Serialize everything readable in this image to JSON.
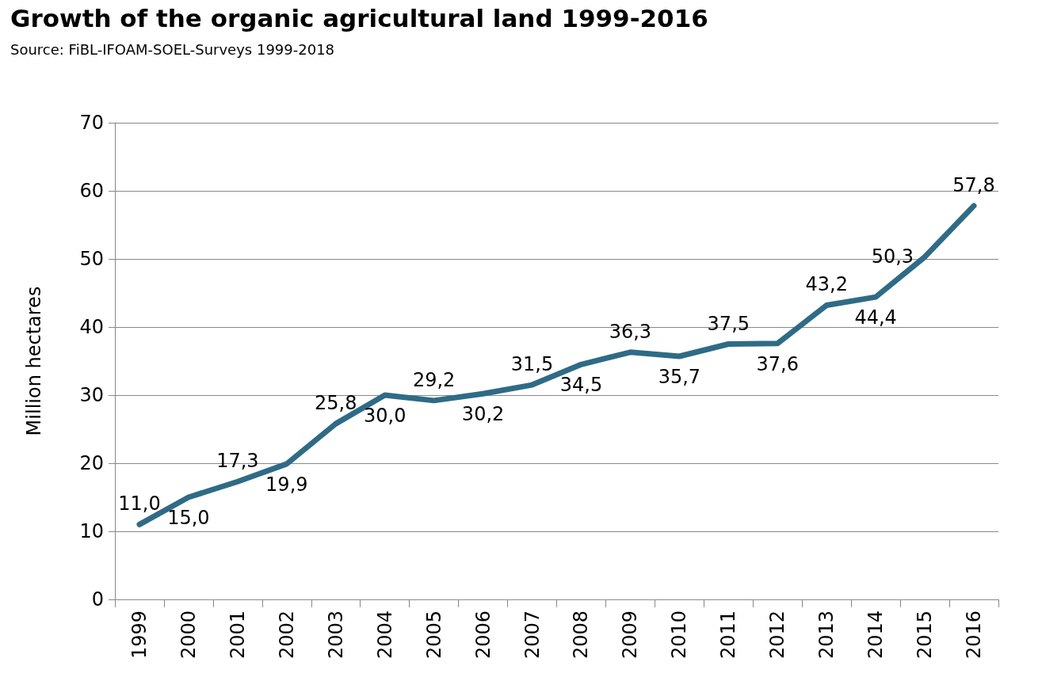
{
  "chart_data": {
    "type": "line",
    "title": "Growth of the organic agricultural land 1999-2016",
    "subtitle": "Source: FiBL-IFOAM-SOEL-Surveys 1999-2018",
    "ylabel": "Million hectares",
    "categories": [
      "1999",
      "2000",
      "2001",
      "2002",
      "2003",
      "2004",
      "2005",
      "2006",
      "2007",
      "2008",
      "2009",
      "2010",
      "2011",
      "2012",
      "2013",
      "2014",
      "2015",
      "2016"
    ],
    "series": [
      {
        "color": "#2f6b86",
        "values": [
          11.0,
          15.0,
          17.3,
          19.9,
          25.8,
          30.0,
          29.2,
          30.2,
          31.5,
          34.5,
          36.3,
          35.7,
          37.5,
          37.6,
          43.2,
          44.4,
          50.3,
          57.8
        ],
        "value_labels": [
          "11,0",
          "15,0",
          "17,3",
          "19,9",
          "25,8",
          "30,0",
          "29,2",
          "30,2",
          "31,5",
          "34,5",
          "36,3",
          "35,7",
          "37,5",
          "37,6",
          "43,2",
          "44,4",
          "50,3",
          "57,8"
        ]
      }
    ],
    "ylim": [
      0,
      70
    ],
    "yticks": [
      0,
      10,
      20,
      30,
      40,
      50,
      60,
      70
    ],
    "grid": "y",
    "marker": "none",
    "line_style": "solid"
  }
}
